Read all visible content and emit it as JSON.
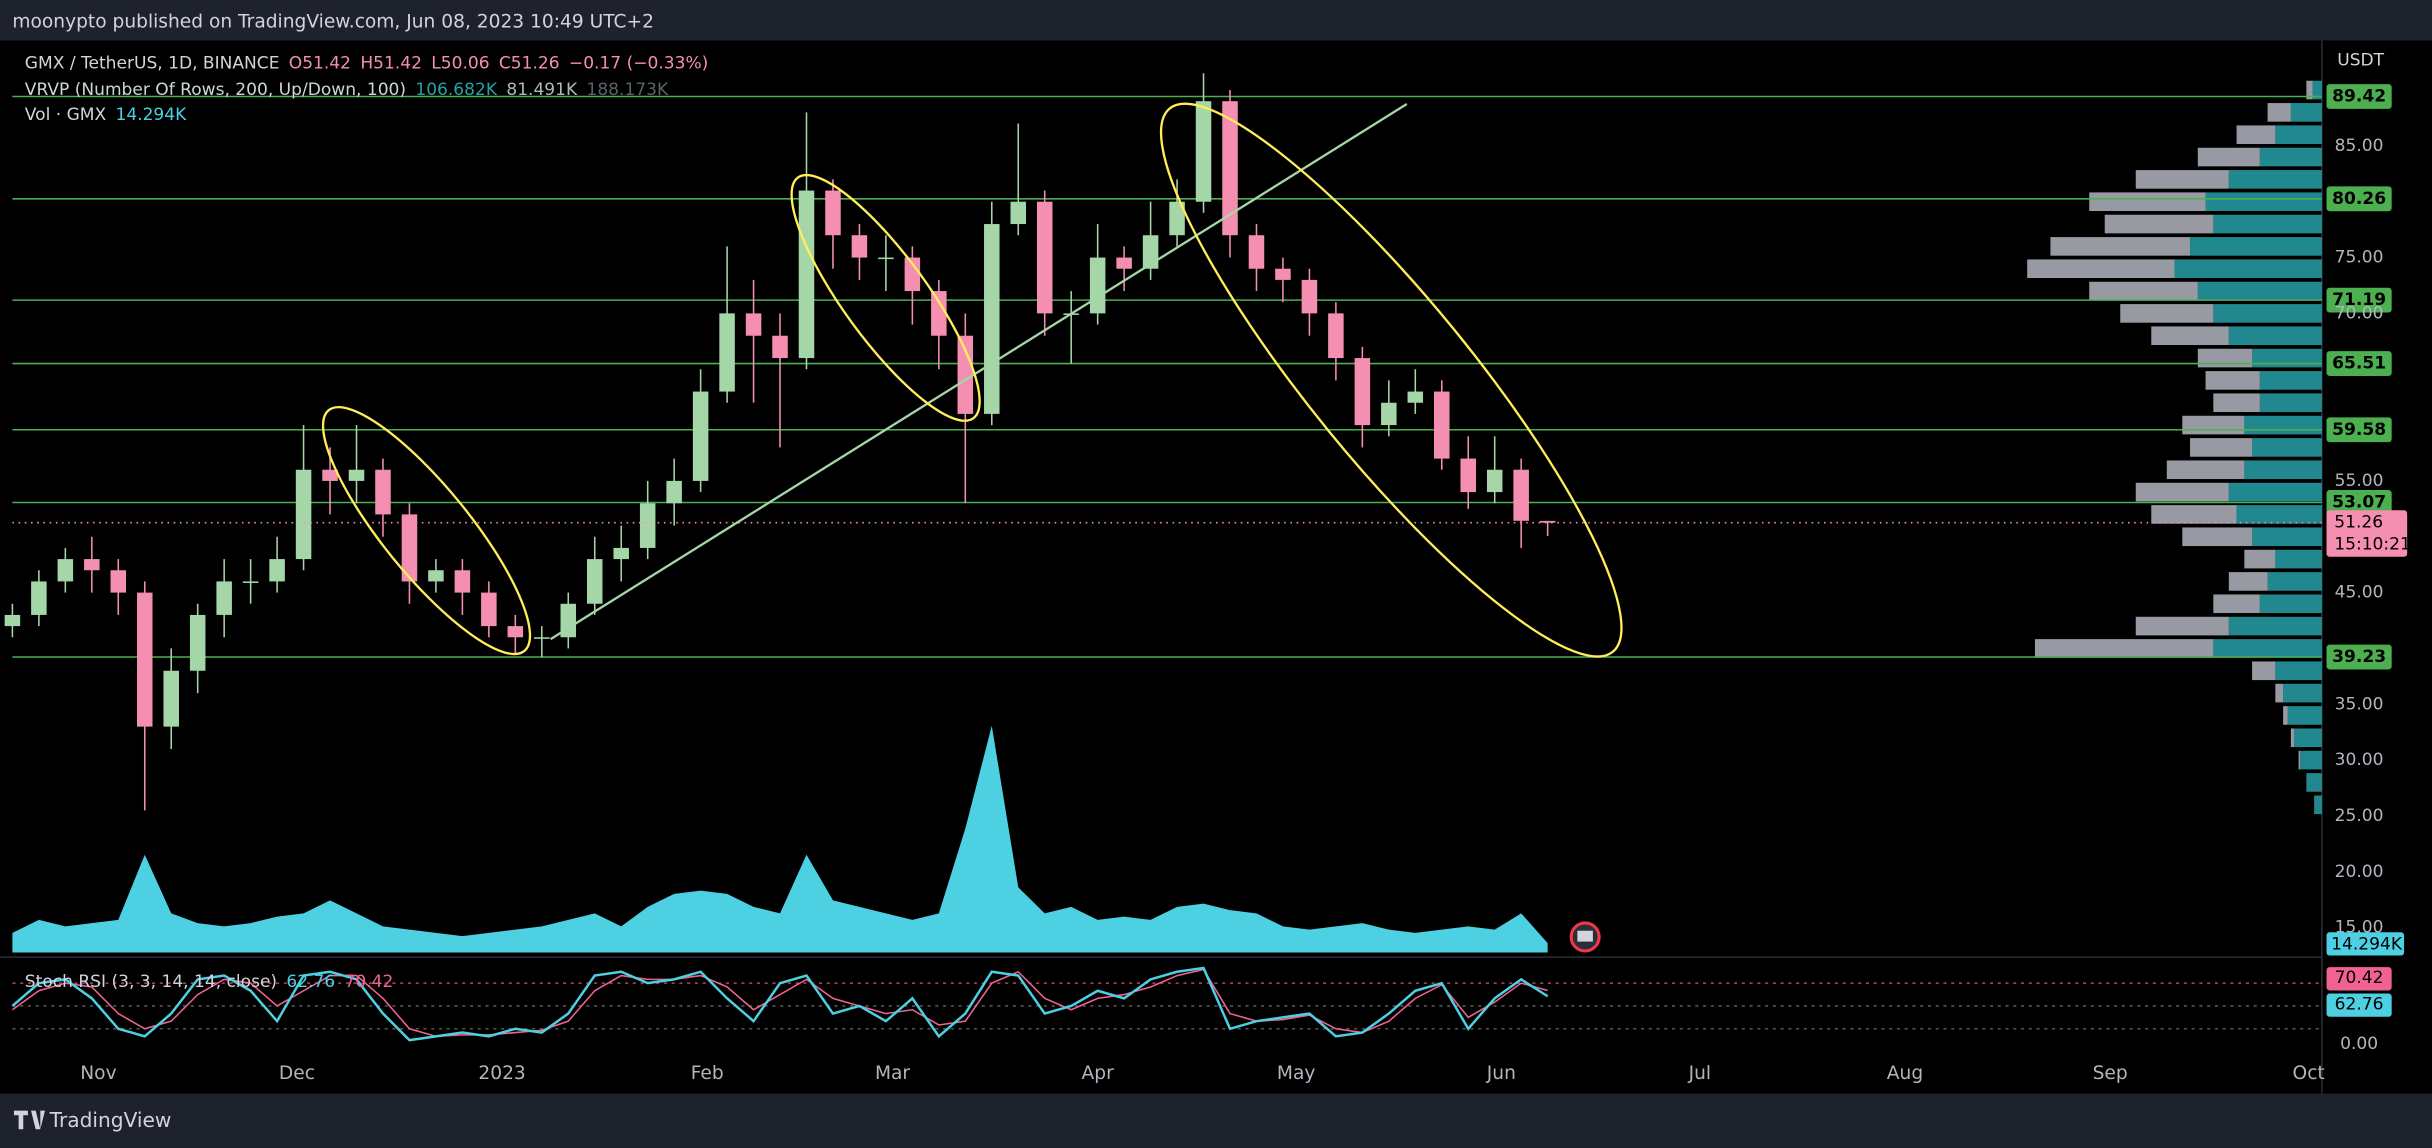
{
  "header": {
    "publisher": "moonypto published on TradingView.com, Jun 08, 2023 10:49 UTC+2",
    "symbol": "GMX / TetherUS, 1D, BINANCE",
    "ohlc": [
      "O51.42",
      "H51.42",
      "L50.06",
      "C51.26"
    ],
    "change": "−0.17 (−0.33%)",
    "vrvp": "VRVP (Number Of Rows, 200, Up/Down, 100)",
    "vrvp_values": [
      "106.682K",
      "81.491K",
      "188.173K"
    ],
    "vol": "Vol · GMX",
    "vol_value": "14.294K",
    "stoch": "Stoch RSI (3, 3, 14, 14, close)",
    "stoch_values": [
      "62.76",
      "70.42"
    ]
  },
  "footer": "TradingView",
  "chart_data": {
    "type": "candlestick",
    "currency": "USDT",
    "x": [
      -13,
      -9,
      -5,
      -1,
      3,
      7,
      11,
      15,
      19,
      23,
      27,
      31,
      35,
      39,
      43,
      47,
      51,
      55,
      59,
      63,
      67,
      71,
      75,
      79,
      83,
      87,
      91,
      95,
      99,
      103,
      107,
      111,
      115,
      119,
      123,
      127,
      131,
      135,
      139,
      143,
      147,
      151,
      155,
      159,
      163,
      167,
      171,
      175,
      179,
      183,
      187,
      191,
      195,
      199,
      203,
      207,
      211,
      215,
      219
    ],
    "open": [
      42,
      43,
      46,
      48,
      47,
      45,
      33,
      38,
      43,
      46,
      46,
      48,
      56,
      55,
      56,
      52,
      46,
      47,
      45,
      42,
      41,
      41,
      44,
      48,
      49,
      53,
      55,
      63,
      70,
      68,
      66,
      81,
      77,
      75,
      75,
      72,
      68,
      61,
      78,
      80,
      70,
      70,
      75,
      74,
      77,
      80,
      89,
      77,
      74,
      73,
      70,
      66,
      60,
      62,
      63,
      57,
      54,
      56,
      51.42
    ],
    "high": [
      44,
      47,
      49,
      50,
      48,
      46,
      40,
      44,
      48,
      48,
      50,
      60,
      58,
      60,
      57,
      53,
      48,
      48,
      46,
      43,
      42,
      45,
      50,
      51,
      55,
      57,
      65,
      76,
      73,
      70,
      88,
      82,
      78,
      77,
      76,
      73,
      70,
      80,
      87,
      81,
      72,
      78,
      76,
      80,
      82,
      91.5,
      90,
      78,
      75,
      74,
      71,
      67,
      64,
      65,
      64,
      59,
      59,
      57,
      51.42
    ],
    "low": [
      41,
      42,
      45,
      45,
      43,
      25.5,
      31,
      36,
      41,
      44,
      45,
      47,
      52,
      53,
      50,
      44,
      45,
      43,
      41,
      39.5,
      39.2,
      40,
      43,
      46,
      48,
      51,
      54,
      62,
      62,
      58,
      65,
      74,
      73,
      72,
      69,
      65,
      53,
      60,
      77,
      68,
      65.5,
      69,
      72,
      73,
      76,
      79,
      75,
      72,
      71,
      68,
      64,
      58,
      59,
      61,
      56,
      52.5,
      53,
      49,
      50.06
    ],
    "close": [
      43,
      46,
      48,
      47,
      45,
      33,
      38,
      43,
      46,
      46,
      48,
      56,
      55,
      56,
      52,
      46,
      47,
      45,
      42,
      41,
      41,
      44,
      48,
      49,
      53,
      55,
      63,
      70,
      68,
      66,
      81,
      77,
      75,
      75,
      72,
      68,
      61,
      78,
      80,
      70,
      70,
      75,
      74,
      77,
      80,
      89,
      77,
      74,
      73,
      70,
      66,
      60,
      62,
      63,
      57,
      54,
      56,
      51.43,
      51.26
    ],
    "up_color": "#a5d6a7",
    "down_color": "#f48fb1",
    "xlim": [
      -13,
      336
    ],
    "xticks": [
      {
        "value": 0,
        "label": "Nov"
      },
      {
        "value": 30,
        "label": "Dec"
      },
      {
        "value": 61,
        "label": "2023"
      },
      {
        "value": 92,
        "label": "Feb"
      },
      {
        "value": 120,
        "label": "Mar"
      },
      {
        "value": 151,
        "label": "Apr"
      },
      {
        "value": 181,
        "label": "May"
      },
      {
        "value": 212,
        "label": "Jun"
      },
      {
        "value": 242,
        "label": "Jul"
      },
      {
        "value": 273,
        "label": "Aug"
      },
      {
        "value": 304,
        "label": "Sep"
      },
      {
        "value": 334,
        "label": "Oct"
      }
    ],
    "ylim": [
      12.5,
      94.44
    ],
    "yticks": [
      {
        "value": 85,
        "label": "85.00"
      },
      {
        "value": 75,
        "label": "75.00"
      },
      {
        "value": 70,
        "label": "70.00"
      },
      {
        "value": 55,
        "label": "55.00"
      },
      {
        "value": 45,
        "label": "45.00"
      },
      {
        "value": 35,
        "label": "35.00"
      },
      {
        "value": 30,
        "label": "30.00"
      },
      {
        "value": 25,
        "label": "25.00"
      },
      {
        "value": 20,
        "label": "20.00"
      },
      {
        "value": 15,
        "label": "15.00"
      }
    ],
    "levels": [
      89.42,
      80.26,
      71.19,
      65.51,
      59.58,
      53.07,
      39.23
    ],
    "level_color": "#4caf50",
    "countdown": "15:10:21",
    "volume": {
      "values": [
        30,
        50,
        40,
        45,
        50,
        150,
        60,
        45,
        40,
        45,
        55,
        60,
        80,
        60,
        40,
        35,
        30,
        25,
        30,
        35,
        40,
        50,
        60,
        40,
        70,
        90,
        95,
        90,
        70,
        60,
        150,
        80,
        70,
        60,
        50,
        60,
        190,
        348,
        100,
        60,
        70,
        50,
        55,
        50,
        70,
        75,
        65,
        60,
        40,
        35,
        40,
        45,
        35,
        30,
        35,
        40,
        35,
        60,
        14.294
      ],
      "color": "#4dd0e1",
      "ylim": [
        0,
        1400
      ]
    },
    "volume_profile": {
      "prices": [
        26,
        28,
        30,
        32,
        34,
        36,
        38,
        40,
        42,
        44,
        46,
        48,
        50,
        52,
        54,
        56,
        58,
        60,
        62,
        64,
        66,
        68,
        70,
        72,
        74,
        76,
        78,
        80,
        82,
        84,
        86,
        88,
        90
      ],
      "up": [
        5,
        10,
        14,
        18,
        22,
        25,
        30,
        70,
        60,
        40,
        35,
        30,
        45,
        55,
        60,
        50,
        45,
        50,
        40,
        40,
        45,
        60,
        70,
        80,
        95,
        85,
        70,
        75,
        60,
        40,
        30,
        20,
        6
      ],
      "down": [
        0,
        0,
        1,
        2,
        3,
        5,
        15,
        115,
        60,
        30,
        25,
        20,
        45,
        55,
        60,
        50,
        40,
        40,
        30,
        35,
        35,
        50,
        60,
        70,
        95,
        90,
        70,
        75,
        60,
        40,
        25,
        15,
        4
      ],
      "xlim": [
        0,
        200
      ],
      "up_color": "#26a0a7",
      "down_color": "#b2b5be"
    },
    "stoch_rsi": {
      "k": [
        50,
        80,
        85,
        60,
        20,
        10,
        40,
        85,
        90,
        70,
        30,
        90,
        95,
        85,
        40,
        5,
        10,
        15,
        10,
        20,
        15,
        40,
        90,
        95,
        80,
        85,
        95,
        60,
        30,
        80,
        90,
        40,
        50,
        30,
        60,
        10,
        40,
        95,
        90,
        40,
        50,
        70,
        60,
        85,
        95,
        100,
        20,
        30,
        35,
        40,
        10,
        15,
        40,
        70,
        80,
        20,
        60,
        85,
        62.76
      ],
      "d": [
        45,
        70,
        80,
        75,
        40,
        20,
        30,
        65,
        85,
        80,
        50,
        70,
        90,
        90,
        60,
        20,
        10,
        12,
        12,
        15,
        18,
        30,
        70,
        90,
        85,
        85,
        90,
        75,
        45,
        65,
        85,
        60,
        50,
        40,
        45,
        25,
        30,
        80,
        95,
        60,
        45,
        60,
        65,
        75,
        90,
        98,
        40,
        30,
        32,
        38,
        20,
        15,
        30,
        60,
        78,
        35,
        55,
        80,
        70.42
      ],
      "k_color": "#4dd0e1",
      "d_color": "#f06292",
      "ylim": [
        0,
        100
      ],
      "yticks": [
        {
          "value": 0,
          "label": "0.00"
        }
      ],
      "bands": [
        20,
        50,
        80
      ]
    }
  }
}
